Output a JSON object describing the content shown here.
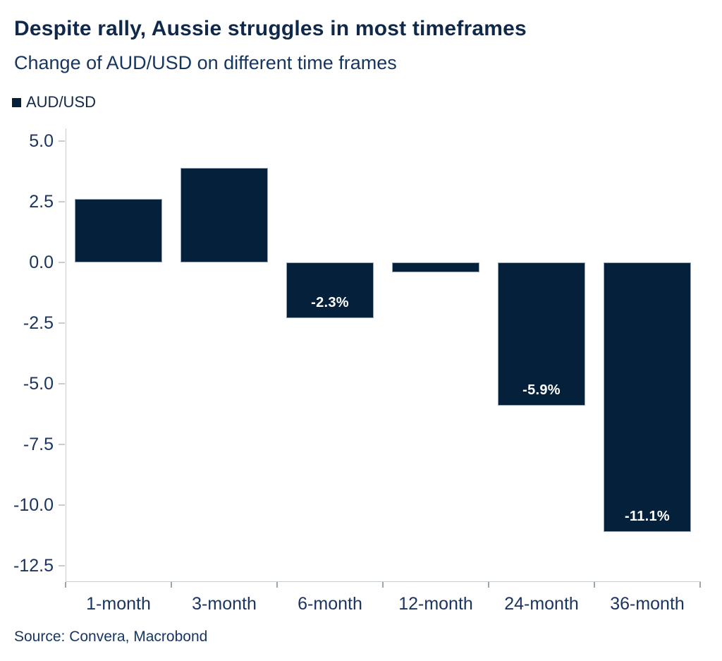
{
  "header": {
    "title": "Despite rally, Aussie struggles in most timeframes",
    "subtitle": "Change of AUD/USD on different time frames"
  },
  "legend": {
    "items": [
      {
        "label": "AUD/USD",
        "marker": "filled-square",
        "color": "#04203b"
      }
    ]
  },
  "source": "Source: Convera, Macrobond",
  "colors": {
    "bar_fill": "#04203b",
    "bar_border": "#95a7b6",
    "title_text": "#10294b",
    "axis_text": "#1b3560",
    "axis_line": "#c6ccd2",
    "bar_label_text": "#ffffff",
    "background": "#ffffff"
  },
  "chart_data": {
    "type": "bar",
    "title": "Despite rally, Aussie struggles in most timeframes",
    "subtitle": "Change of AUD/USD on different time frames",
    "series": [
      {
        "name": "AUD/USD",
        "values": [
          2.6,
          3.9,
          -2.3,
          -0.4,
          -5.9,
          -11.1
        ],
        "data_labels": [
          "",
          "",
          "-2.3%",
          "",
          "-5.9%",
          "-11.1%"
        ]
      }
    ],
    "categories": [
      "1-month",
      "3-month",
      "6-month",
      "12-month",
      "24-month",
      "36-month"
    ],
    "unit": "percent",
    "xlabel": "",
    "ylabel": "",
    "yticks": [
      5.0,
      2.5,
      0.0,
      -2.5,
      -5.0,
      -7.5,
      -10.0,
      -12.5
    ],
    "ytick_labels": [
      "5.0",
      "2.5",
      "0.0",
      "-2.5",
      "-5.0",
      "-7.5",
      "-10.0",
      "-12.5"
    ],
    "ylim": [
      -13.14,
      5.52
    ],
    "grid": false,
    "legend_position": "top-left",
    "source_note": "Source: Convera, Macrobond"
  }
}
